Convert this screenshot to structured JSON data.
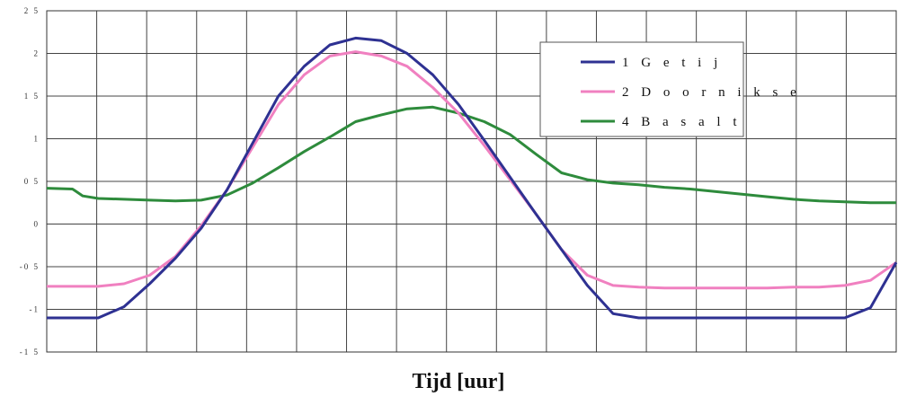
{
  "chart_data": {
    "type": "line",
    "title": "",
    "xlabel": "Tijd [uur]",
    "ylabel": "",
    "ylim": [
      -1.5,
      2.5
    ],
    "yticks": [
      "2 5",
      "2",
      "1 5",
      "1",
      "0 5",
      "0",
      "-0 5",
      "-1",
      "-1 5"
    ],
    "grid": true,
    "legend_position": "top-right",
    "series": [
      {
        "name": "1 G e t i j",
        "color": "#2e3192",
        "x": [
          0,
          0.5,
          1,
          1.5,
          2,
          2.5,
          3,
          3.5,
          4,
          4.5,
          5,
          5.5,
          6,
          6.5,
          7,
          7.5,
          8,
          8.5,
          9,
          9.5,
          10,
          10.5,
          11,
          11.5,
          12,
          12.5,
          13,
          13.5,
          14,
          14.5,
          15,
          15.5,
          16,
          16.5
        ],
        "values": [
          -1.1,
          -1.1,
          -1.1,
          -0.97,
          -0.7,
          -0.4,
          -0.05,
          0.4,
          0.95,
          1.5,
          1.85,
          2.1,
          2.18,
          2.15,
          2.0,
          1.75,
          1.4,
          0.98,
          0.55,
          0.12,
          -0.3,
          -0.72,
          -1.05,
          -1.1,
          -1.1,
          -1.1,
          -1.1,
          -1.1,
          -1.1,
          -1.1,
          -1.1,
          -1.1,
          -0.98,
          -0.45
        ]
      },
      {
        "name": "2 D o o r n i k s e",
        "color": "#f080c0",
        "x": [
          0,
          0.5,
          1,
          1.5,
          2,
          2.5,
          3,
          3.5,
          4,
          4.5,
          5,
          5.5,
          6,
          6.5,
          7,
          7.5,
          8,
          8.5,
          9,
          9.5,
          10,
          10.5,
          11,
          11.5,
          12,
          12.5,
          13,
          13.5,
          14,
          14.5,
          15,
          15.5,
          16,
          16.5
        ],
        "values": [
          -0.73,
          -0.73,
          -0.73,
          -0.7,
          -0.6,
          -0.38,
          -0.02,
          0.4,
          0.9,
          1.4,
          1.75,
          1.97,
          2.02,
          1.97,
          1.85,
          1.6,
          1.3,
          0.92,
          0.52,
          0.12,
          -0.3,
          -0.6,
          -0.72,
          -0.74,
          -0.75,
          -0.75,
          -0.75,
          -0.75,
          -0.75,
          -0.74,
          -0.74,
          -0.72,
          -0.66,
          -0.45
        ]
      },
      {
        "name": "4 B a s a l t",
        "color": "#2e8b3c",
        "x": [
          0,
          0.5,
          0.55,
          0.7,
          1,
          1.5,
          2,
          2.5,
          3,
          3.5,
          4,
          4.5,
          5,
          5.5,
          6,
          6.5,
          7,
          7.5,
          8,
          8.5,
          9,
          9.5,
          10,
          10.5,
          11,
          11.5,
          12,
          12.5,
          13,
          13.5,
          14,
          14.5,
          15,
          15.5,
          16,
          16.5
        ],
        "values": [
          0.42,
          0.41,
          0.39,
          0.33,
          0.3,
          0.29,
          0.28,
          0.27,
          0.28,
          0.34,
          0.48,
          0.66,
          0.85,
          1.02,
          1.2,
          1.28,
          1.35,
          1.37,
          1.3,
          1.2,
          1.05,
          0.82,
          0.6,
          0.52,
          0.48,
          0.46,
          0.43,
          0.41,
          0.38,
          0.35,
          0.32,
          0.29,
          0.27,
          0.26,
          0.25,
          0.25
        ]
      }
    ]
  }
}
